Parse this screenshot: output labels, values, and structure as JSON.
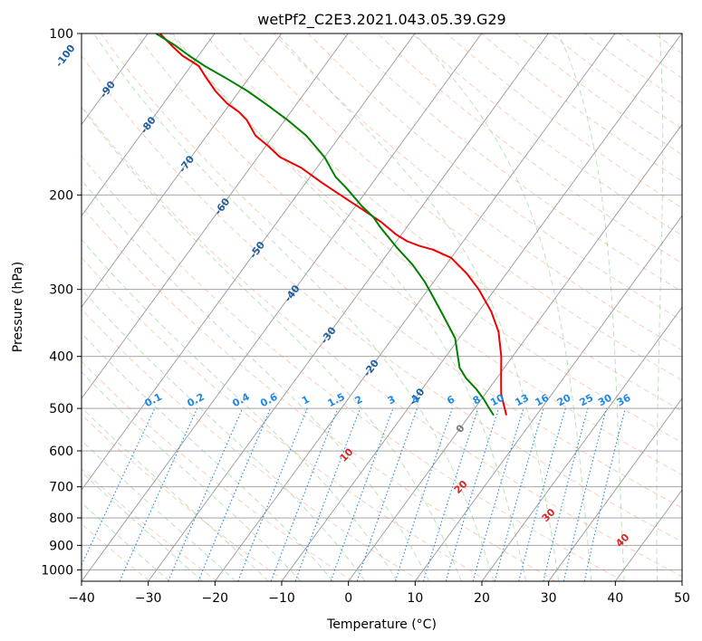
{
  "chart_data": {
    "type": "skew-t",
    "title": "wetPf2_C2E3.2021.043.05.39.G29",
    "xlabel": "Temperature (°C)",
    "ylabel": "Pressure (hPa)",
    "xlim": [
      -40,
      50
    ],
    "ylim": [
      1050,
      100
    ],
    "x_ticks": [
      -40,
      -30,
      -20,
      -10,
      0,
      10,
      20,
      30,
      40,
      50
    ],
    "y_ticks": [
      1000,
      900,
      800,
      700,
      600,
      500,
      400,
      300,
      200,
      100
    ],
    "colors": {
      "temperature": "#ee0000",
      "dewpoint": "#008000",
      "isotherm": "#999999",
      "dry_adiabat": "#f4a582",
      "moist_adiabat": "#8fcf8f",
      "mixing_ratio": "#1e88e5",
      "isotherm_label": "#1f5f9f",
      "moist_label": "#d62728",
      "dcape_line": "#d2b48c"
    },
    "series": [
      {
        "name": "Temperature",
        "color": "#ee0000",
        "points": [
          {
            "p": 515,
            "t": 5.5
          },
          {
            "p": 500,
            "t": 4.5
          },
          {
            "p": 470,
            "t": 2.4
          },
          {
            "p": 440,
            "t": 0.7
          },
          {
            "p": 400,
            "t": -1.7
          },
          {
            "p": 360,
            "t": -4.8
          },
          {
            "p": 330,
            "t": -8.1
          },
          {
            "p": 300,
            "t": -12.4
          },
          {
            "p": 280,
            "t": -16.0
          },
          {
            "p": 262,
            "t": -20.0
          },
          {
            "p": 253,
            "t": -23.6
          },
          {
            "p": 249,
            "t": -26.0
          },
          {
            "p": 244,
            "t": -28.4
          },
          {
            "p": 237,
            "t": -30.8
          },
          {
            "p": 225,
            "t": -34.3
          },
          {
            "p": 212,
            "t": -38.9
          },
          {
            "p": 200,
            "t": -43.5
          },
          {
            "p": 190,
            "t": -47.5
          },
          {
            "p": 178,
            "t": -52.3
          },
          {
            "p": 170,
            "t": -56.7
          },
          {
            "p": 162,
            "t": -59.7
          },
          {
            "p": 155,
            "t": -62.7
          },
          {
            "p": 145,
            "t": -65.7
          },
          {
            "p": 140,
            "t": -67.8
          },
          {
            "p": 135,
            "t": -70.5
          },
          {
            "p": 128,
            "t": -73.6
          },
          {
            "p": 120,
            "t": -76.8
          },
          {
            "p": 115,
            "t": -78.8
          },
          {
            "p": 110,
            "t": -82.4
          },
          {
            "p": 105,
            "t": -85.3
          },
          {
            "p": 100,
            "t": -88.2
          }
        ]
      },
      {
        "name": "Dewpoint",
        "color": "#008000",
        "points": [
          {
            "p": 515,
            "t": 3.6
          },
          {
            "p": 500,
            "t": 2.2
          },
          {
            "p": 480,
            "t": 0.3
          },
          {
            "p": 460,
            "t": -1.9
          },
          {
            "p": 440,
            "t": -4.5
          },
          {
            "p": 420,
            "t": -6.7
          },
          {
            "p": 400,
            "t": -8.2
          },
          {
            "p": 370,
            "t": -10.6
          },
          {
            "p": 340,
            "t": -14.3
          },
          {
            "p": 310,
            "t": -18.4
          },
          {
            "p": 290,
            "t": -21.4
          },
          {
            "p": 270,
            "t": -25.0
          },
          {
            "p": 250,
            "t": -29.4
          },
          {
            "p": 230,
            "t": -33.9
          },
          {
            "p": 220,
            "t": -36.1
          },
          {
            "p": 210,
            "t": -39.0
          },
          {
            "p": 195,
            "t": -43.1
          },
          {
            "p": 185,
            "t": -46.2
          },
          {
            "p": 170,
            "t": -50.0
          },
          {
            "p": 155,
            "t": -55.1
          },
          {
            "p": 145,
            "t": -59.6
          },
          {
            "p": 135,
            "t": -64.8
          },
          {
            "p": 128,
            "t": -68.8
          },
          {
            "p": 122,
            "t": -72.8
          },
          {
            "p": 115,
            "t": -77.9
          },
          {
            "p": 110,
            "t": -81.4
          },
          {
            "p": 105,
            "t": -84.8
          },
          {
            "p": 100,
            "t": -88.8
          }
        ]
      }
    ],
    "isotherm_labels": [
      "-100",
      "-90",
      "-80",
      "-70",
      "-60",
      "-50",
      "-40",
      "-30",
      "-20",
      "-10",
      "0"
    ],
    "isotherm_label_values": [
      -100,
      -90,
      -80,
      -70,
      -60,
      -50,
      -40,
      -30,
      -20,
      -10,
      0
    ],
    "mixing_ratio_labels": [
      "0.1",
      "0.2",
      "0.4",
      "0.6",
      "1",
      "1.5",
      "2",
      "3",
      "4",
      "6",
      "8",
      "10",
      "13",
      "16",
      "20",
      "25",
      "30",
      "36"
    ],
    "mixing_ratio_values": [
      0.1,
      0.2,
      0.4,
      0.6,
      1,
      1.5,
      2,
      3,
      4,
      6,
      8,
      10,
      13,
      16,
      20,
      25,
      30,
      36
    ],
    "moist_adiabat_labels": [
      "10",
      "20",
      "30",
      "40"
    ],
    "moist_adiabat_values": [
      10,
      20,
      30,
      40
    ]
  }
}
